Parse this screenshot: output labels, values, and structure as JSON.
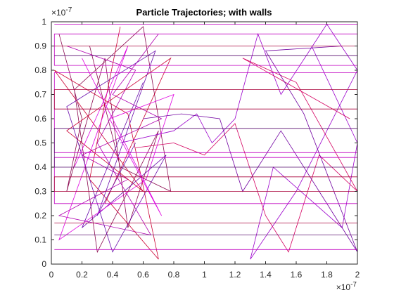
{
  "chart_data": {
    "type": "line",
    "title": "Particle Trajectories; with walls",
    "xlabel": "",
    "ylabel": "",
    "xlim": [
      0,
      2e-07
    ],
    "ylim": [
      0,
      1e-07
    ],
    "x_ticks": [
      "0",
      "0.2",
      "0.4",
      "0.6",
      "0.8",
      "1",
      "1.2",
      "1.4",
      "1.6",
      "1.8",
      "2"
    ],
    "y_ticks": [
      "0",
      "0.1",
      "0.2",
      "0.3",
      "0.4",
      "0.5",
      "0.6",
      "0.7",
      "0.8",
      "0.9",
      "1"
    ],
    "x_exponent": {
      "base": "×10",
      "power": "-7"
    },
    "y_exponent": {
      "base": "×10",
      "power": "-7"
    },
    "grid": false,
    "walls": {
      "left_region_x_max": 8e-08,
      "right_region_x_min": 1.2e-07,
      "center_channel_y": [
        4.2e-08,
        6.5e-08
      ]
    },
    "series": [
      {
        "values": [
          [
            0.05,
            0.95
          ],
          [
            0.2,
            0.6
          ],
          [
            0.1,
            0.3
          ],
          [
            0.35,
            0.85
          ],
          [
            0.5,
            0.15
          ],
          [
            0.7,
            0.55
          ],
          [
            0.3,
            0.05
          ],
          [
            0.15,
            0.72
          ],
          [
            0.6,
            0.98
          ],
          [
            0.78,
            0.3
          ],
          [
            0.45,
            0.4
          ],
          [
            0.25,
            0.9
          ]
        ],
        "color": "#8b0a50"
      },
      {
        "values": [
          [
            0.7,
            0.95
          ],
          [
            0.4,
            0.7
          ],
          [
            0.72,
            0.6
          ],
          [
            0.2,
            0.45
          ],
          [
            0.5,
            0.35
          ],
          [
            0.05,
            0.2
          ],
          [
            0.65,
            0.12
          ],
          [
            0.3,
            0.5
          ],
          [
            0.55,
            0.8
          ],
          [
            0.1,
            0.9
          ]
        ],
        "color": "#b000b0"
      },
      {
        "values": [
          [
            0.35,
            0.25
          ],
          [
            0.78,
            0.85
          ],
          [
            0.1,
            0.55
          ],
          [
            0.6,
            0.3
          ],
          [
            0.02,
            0.8
          ],
          [
            0.5,
            0.62
          ],
          [
            0.7,
            0.02
          ],
          [
            0.25,
            0.35
          ],
          [
            0.45,
            0.98
          ]
        ],
        "color": "#cc0033"
      },
      {
        "values": [
          [
            0.6,
            0.75
          ],
          [
            0.2,
            0.15
          ],
          [
            0.75,
            0.45
          ],
          [
            0.4,
            0.05
          ],
          [
            0.1,
            0.65
          ],
          [
            0.68,
            0.88
          ],
          [
            0.3,
            0.2
          ],
          [
            0.55,
            0.5
          ]
        ],
        "color": "#6a0dad"
      },
      {
        "values": [
          [
            0.15,
            0.4
          ],
          [
            0.5,
            0.9
          ],
          [
            0.05,
            0.1
          ],
          [
            0.62,
            0.35
          ],
          [
            0.8,
            0.7
          ],
          [
            0.38,
            0.6
          ],
          [
            0.72,
            0.2
          ],
          [
            0.2,
            0.85
          ]
        ],
        "color": "#e000e0"
      },
      {
        "values": [
          [
            0.45,
            0.5
          ],
          [
            0.8,
            0.55
          ],
          [
            0.95,
            0.62
          ],
          [
            1.05,
            0.5
          ],
          [
            1.2,
            0.6
          ],
          [
            1.35,
            0.95
          ],
          [
            1.5,
            0.7
          ],
          [
            1.8,
            0.99
          ],
          [
            2.0,
            0.8
          ],
          [
            1.6,
            0.3
          ],
          [
            1.3,
            0.02
          ],
          [
            1.45,
            0.4
          ],
          [
            1.9,
            0.15
          ],
          [
            2.0,
            0.5
          ],
          [
            1.7,
            0.9
          ]
        ],
        "color": "#9b00cc"
      },
      {
        "values": [
          [
            0.55,
            0.48
          ],
          [
            0.8,
            0.5
          ],
          [
            1.0,
            0.45
          ],
          [
            1.2,
            0.58
          ],
          [
            1.4,
            0.2
          ],
          [
            1.55,
            0.05
          ],
          [
            1.75,
            0.45
          ],
          [
            2.0,
            0.3
          ],
          [
            1.6,
            0.75
          ],
          [
            1.25,
            0.85
          ],
          [
            1.95,
            0.6
          ]
        ],
        "color": "#d40060"
      },
      {
        "values": [
          [
            0.6,
            0.6
          ],
          [
            0.85,
            0.62
          ],
          [
            1.1,
            0.6
          ],
          [
            1.25,
            0.3
          ],
          [
            1.5,
            0.55
          ],
          [
            1.85,
            0.2
          ],
          [
            2.0,
            0.05
          ],
          [
            1.65,
            0.62
          ],
          [
            1.4,
            0.88
          ],
          [
            1.9,
            0.9
          ]
        ],
        "color": "#7000a0"
      },
      {
        "values": [
          [
            0.02,
            0.99
          ],
          [
            2.0,
            0.99
          ],
          [
            2.0,
            0.95
          ],
          [
            0.02,
            0.95
          ],
          [
            0.02,
            0.82
          ],
          [
            2.0,
            0.82
          ],
          [
            2.0,
            0.79
          ],
          [
            0.02,
            0.79
          ],
          [
            0.02,
            0.46
          ],
          [
            2.0,
            0.46
          ],
          [
            2.0,
            0.44
          ],
          [
            0.02,
            0.44
          ],
          [
            0.02,
            0.25
          ],
          [
            2.0,
            0.25
          ],
          [
            2.0,
            0.06
          ],
          [
            0.02,
            0.06
          ]
        ],
        "color": "#c000c0"
      },
      {
        "values": [
          [
            0.02,
            0.9
          ],
          [
            2.0,
            0.9
          ],
          [
            2.0,
            0.72
          ],
          [
            0.02,
            0.72
          ],
          [
            0.02,
            0.64
          ],
          [
            2.0,
            0.64
          ],
          [
            2.0,
            0.36
          ],
          [
            0.02,
            0.36
          ],
          [
            0.02,
            0.3
          ],
          [
            2.0,
            0.3
          ],
          [
            2.0,
            0.17
          ],
          [
            0.02,
            0.17
          ]
        ],
        "color": "#a8003a"
      },
      {
        "values": [
          [
            0.02,
            0.86
          ],
          [
            2.0,
            0.86
          ],
          [
            2.0,
            0.56
          ],
          [
            0.02,
            0.56
          ],
          [
            0.02,
            0.4
          ],
          [
            2.0,
            0.4
          ],
          [
            2.0,
            0.12
          ],
          [
            0.02,
            0.12
          ]
        ],
        "color": "#5a1070"
      }
    ]
  }
}
